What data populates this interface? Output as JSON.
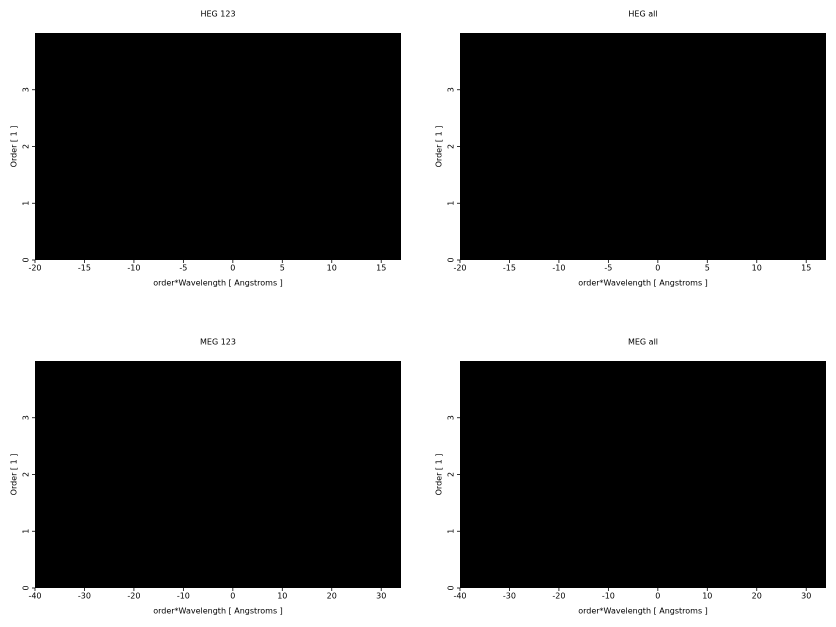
{
  "chart_data": [
    {
      "type": "heatmap",
      "title": "HEG 123",
      "xlabel": "order*Wavelength [ Angstroms ]",
      "ylabel": "Order [ 1 ]",
      "xlim": [
        -20,
        17
      ],
      "ylim": [
        0,
        4
      ],
      "xticks": [
        -20,
        -15,
        -10,
        -5,
        0,
        5,
        10,
        15
      ],
      "yticks": [
        0,
        1,
        2,
        3
      ]
    },
    {
      "type": "heatmap",
      "title": "HEG all",
      "xlabel": "order*Wavelength [ Angstroms ]",
      "ylabel": "Order [ 1 ]",
      "xlim": [
        -20,
        17
      ],
      "ylim": [
        0,
        4
      ],
      "xticks": [
        -20,
        -15,
        -10,
        -5,
        0,
        5,
        10,
        15
      ],
      "yticks": [
        0,
        1,
        2,
        3
      ]
    },
    {
      "type": "heatmap",
      "title": "MEG 123",
      "xlabel": "order*Wavelength [ Angstroms ]",
      "ylabel": "Order [ 1 ]",
      "xlim": [
        -40,
        34
      ],
      "ylim": [
        0,
        4
      ],
      "xticks": [
        -40,
        -30,
        -20,
        -10,
        0,
        10,
        20,
        30
      ],
      "yticks": [
        0,
        1,
        2,
        3
      ]
    },
    {
      "type": "heatmap",
      "title": "MEG all",
      "xlabel": "order*Wavelength [ Angstroms ]",
      "ylabel": "Order [ 1 ]",
      "xlim": [
        -40,
        34
      ],
      "ylim": [
        0,
        4
      ],
      "xticks": [
        -40,
        -30,
        -20,
        -10,
        0,
        10,
        20,
        30
      ],
      "yticks": [
        0,
        1,
        2,
        3
      ]
    }
  ]
}
